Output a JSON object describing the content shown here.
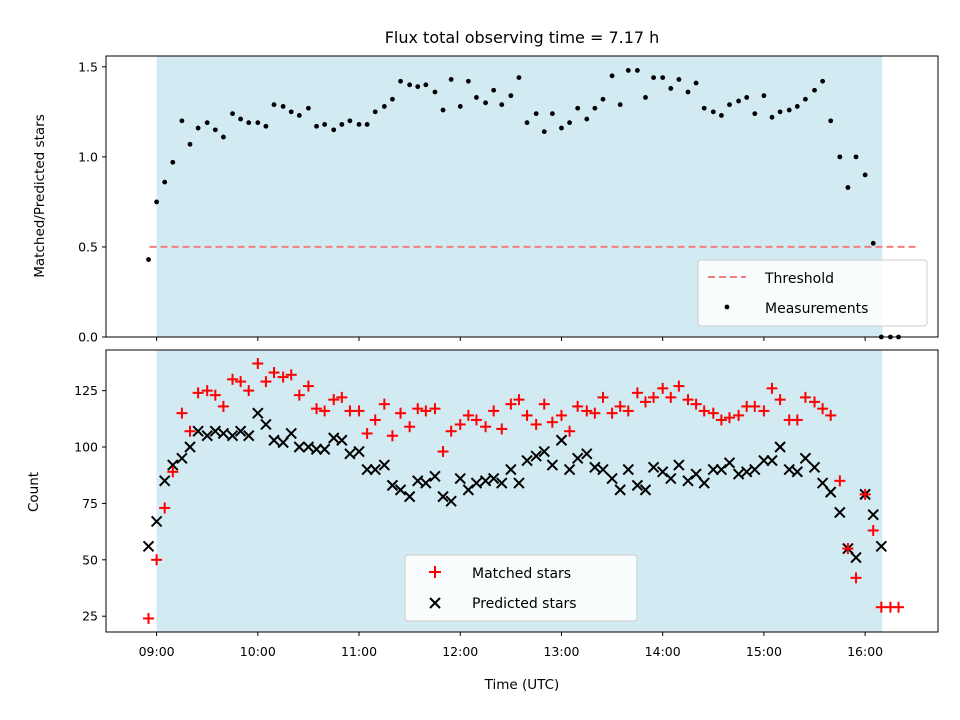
{
  "figure_title": "Flux total observing time = 7.17 h",
  "chart_data": [
    {
      "type": "scatter",
      "title": "Flux total observing time = 7.17 h",
      "ylabel": "Matched/Predicted stars",
      "xlabel": "",
      "ylim": [
        0,
        1.56
      ],
      "xlim": [
        8.5,
        16.72
      ],
      "yticks": [
        0.0,
        0.5,
        1.0,
        1.5
      ],
      "yticklabels": [
        "0.0",
        "0.5",
        "1.0",
        "1.5"
      ],
      "xticks": [
        9,
        10,
        11,
        12,
        13,
        14,
        15,
        16
      ],
      "observing_window": [
        9.0,
        16.17
      ],
      "shade_color": "#add8e6",
      "legend_position": "lower right",
      "threshold": {
        "name": "Threshold",
        "value": 0.5,
        "x_range": [
          8.93,
          16.5
        ],
        "color": "#f08080"
      },
      "series": [
        {
          "name": "Measurements",
          "color": "#000000",
          "x": [
            8.92,
            9.0,
            9.08,
            9.16,
            9.25,
            9.33,
            9.41,
            9.5,
            9.58,
            9.66,
            9.75,
            9.83,
            9.91,
            10.0,
            10.08,
            10.16,
            10.25,
            10.33,
            10.41,
            10.5,
            10.58,
            10.66,
            10.75,
            10.83,
            10.91,
            11.0,
            11.08,
            11.16,
            11.25,
            11.33,
            11.41,
            11.5,
            11.58,
            11.66,
            11.75,
            11.83,
            11.91,
            12.0,
            12.08,
            12.16,
            12.25,
            12.33,
            12.41,
            12.5,
            12.58,
            12.66,
            12.75,
            12.83,
            12.91,
            13.0,
            13.08,
            13.16,
            13.25,
            13.33,
            13.41,
            13.5,
            13.58,
            13.66,
            13.75,
            13.83,
            13.91,
            14.0,
            14.08,
            14.16,
            14.25,
            14.33,
            14.41,
            14.5,
            14.58,
            14.66,
            14.75,
            14.83,
            14.91,
            15.0,
            15.08,
            15.16,
            15.25,
            15.33,
            15.41,
            15.5,
            15.58,
            15.66,
            15.75,
            15.83,
            15.91,
            16.0,
            16.08,
            16.16,
            16.25,
            16.33
          ],
          "y": [
            0.43,
            0.75,
            0.86,
            0.97,
            1.2,
            1.07,
            1.16,
            1.19,
            1.15,
            1.11,
            1.24,
            1.21,
            1.19,
            1.19,
            1.17,
            1.29,
            1.28,
            1.25,
            1.23,
            1.27,
            1.17,
            1.18,
            1.15,
            1.18,
            1.2,
            1.18,
            1.18,
            1.25,
            1.28,
            1.32,
            1.42,
            1.4,
            1.39,
            1.4,
            1.36,
            1.26,
            1.43,
            1.28,
            1.42,
            1.33,
            1.3,
            1.37,
            1.29,
            1.34,
            1.44,
            1.19,
            1.24,
            1.14,
            1.24,
            1.16,
            1.19,
            1.27,
            1.21,
            1.27,
            1.32,
            1.45,
            1.29,
            1.48,
            1.48,
            1.33,
            1.44,
            1.44,
            1.38,
            1.43,
            1.36,
            1.41,
            1.27,
            1.25,
            1.23,
            1.29,
            1.31,
            1.33,
            1.24,
            1.34,
            1.22,
            1.25,
            1.26,
            1.28,
            1.32,
            1.37,
            1.42,
            1.2,
            1.0,
            0.83,
            1.0,
            0.9,
            0.52,
            0.0,
            0.0,
            0.0
          ]
        }
      ]
    },
    {
      "type": "scatter",
      "xlabel": "Time (UTC)",
      "ylabel": "Count",
      "ylim": [
        18,
        143
      ],
      "xlim": [
        8.5,
        16.72
      ],
      "yticks": [
        25,
        50,
        75,
        100,
        125
      ],
      "yticklabels": [
        "25",
        "50",
        "75",
        "100",
        "125"
      ],
      "xticks": [
        9,
        10,
        11,
        12,
        13,
        14,
        15,
        16
      ],
      "xticklabels": [
        "09:00",
        "10:00",
        "11:00",
        "12:00",
        "13:00",
        "14:00",
        "15:00",
        "16:00"
      ],
      "observing_window": [
        9.0,
        16.17
      ],
      "legend_position": "lower center",
      "series": [
        {
          "name": "Matched stars",
          "marker": "+",
          "color": "#ff0000",
          "x": [
            8.92,
            9.0,
            9.08,
            9.16,
            9.25,
            9.33,
            9.41,
            9.5,
            9.58,
            9.66,
            9.75,
            9.83,
            9.91,
            10.0,
            10.08,
            10.16,
            10.25,
            10.33,
            10.41,
            10.5,
            10.58,
            10.66,
            10.75,
            10.83,
            10.91,
            11.0,
            11.08,
            11.16,
            11.25,
            11.33,
            11.41,
            11.5,
            11.58,
            11.66,
            11.75,
            11.83,
            11.91,
            12.0,
            12.08,
            12.16,
            12.25,
            12.33,
            12.41,
            12.5,
            12.58,
            12.66,
            12.75,
            12.83,
            12.91,
            13.0,
            13.08,
            13.16,
            13.25,
            13.33,
            13.41,
            13.5,
            13.58,
            13.66,
            13.75,
            13.83,
            13.91,
            14.0,
            14.08,
            14.16,
            14.25,
            14.33,
            14.41,
            14.5,
            14.58,
            14.66,
            14.75,
            14.83,
            14.91,
            15.0,
            15.08,
            15.16,
            15.25,
            15.33,
            15.41,
            15.5,
            15.58,
            15.66,
            15.75,
            15.83,
            15.91,
            16.0,
            16.08,
            16.16,
            16.25,
            16.33
          ],
          "y": [
            24,
            50,
            73,
            89,
            115,
            107,
            124,
            125,
            123,
            118,
            130,
            129,
            125,
            137,
            129,
            133,
            131,
            132,
            123,
            127,
            117,
            116,
            121,
            122,
            116,
            116,
            106,
            112,
            119,
            105,
            115,
            109,
            117,
            116,
            117,
            98,
            107,
            110,
            114,
            112,
            109,
            116,
            108,
            119,
            121,
            114,
            110,
            119,
            111,
            114,
            107,
            118,
            116,
            115,
            122,
            115,
            118,
            116,
            124,
            120,
            122,
            126,
            122,
            127,
            121,
            119,
            116,
            115,
            112,
            113,
            114,
            118,
            118,
            116,
            126,
            121,
            112,
            112,
            122,
            120,
            117,
            114,
            85,
            55,
            42,
            79,
            63,
            29,
            29,
            29
          ]
        },
        {
          "name": "Predicted stars",
          "marker": "x",
          "color": "#000000",
          "x": [
            8.92,
            9.0,
            9.08,
            9.16,
            9.25,
            9.33,
            9.41,
            9.5,
            9.58,
            9.66,
            9.75,
            9.83,
            9.91,
            10.0,
            10.08,
            10.16,
            10.25,
            10.33,
            10.41,
            10.5,
            10.58,
            10.66,
            10.75,
            10.83,
            10.91,
            11.0,
            11.08,
            11.16,
            11.25,
            11.33,
            11.41,
            11.5,
            11.58,
            11.66,
            11.75,
            11.83,
            11.91,
            12.0,
            12.08,
            12.16,
            12.25,
            12.33,
            12.41,
            12.5,
            12.58,
            12.66,
            12.75,
            12.83,
            12.91,
            13.0,
            13.08,
            13.16,
            13.25,
            13.33,
            13.41,
            13.5,
            13.58,
            13.66,
            13.75,
            13.83,
            13.91,
            14.0,
            14.08,
            14.16,
            14.25,
            14.33,
            14.41,
            14.5,
            14.58,
            14.66,
            14.75,
            14.83,
            14.91,
            15.0,
            15.08,
            15.16,
            15.25,
            15.33,
            15.41,
            15.5,
            15.58,
            15.66,
            15.75,
            15.83,
            15.91,
            16.0,
            16.08,
            16.16
          ],
          "y": [
            56,
            67,
            85,
            92,
            95,
            100,
            107,
            105,
            107,
            106,
            105,
            107,
            105,
            115,
            110,
            103,
            102,
            106,
            100,
            100,
            99,
            99,
            104,
            103,
            97,
            98,
            90,
            90,
            92,
            83,
            81,
            78,
            85,
            84,
            87,
            78,
            76,
            86,
            81,
            84,
            85,
            86,
            84,
            90,
            84,
            94,
            96,
            98,
            92,
            103,
            90,
            95,
            97,
            91,
            90,
            86,
            81,
            90,
            83,
            81,
            91,
            89,
            86,
            92,
            85,
            88,
            84,
            90,
            90,
            93,
            88,
            89,
            90,
            94,
            94,
            100,
            90,
            89,
            95,
            91,
            84,
            80,
            71,
            55,
            51,
            79,
            70,
            56
          ]
        }
      ]
    }
  ]
}
